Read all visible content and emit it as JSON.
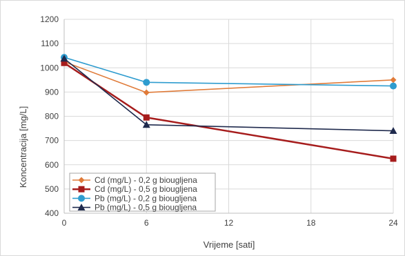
{
  "chart_data": {
    "type": "line",
    "title": "",
    "xlabel": "Vrijeme [sati]",
    "ylabel": "Koncentracija [mg/L]",
    "xlim": [
      0,
      24
    ],
    "ylim": [
      400,
      1200
    ],
    "x_ticks": [
      "0",
      "6",
      "12",
      "18",
      "24"
    ],
    "y_ticks": [
      "400",
      "500",
      "600",
      "700",
      "800",
      "900",
      "1000",
      "1100",
      "1200"
    ],
    "grid": "both",
    "legend_position": "bottom-left",
    "x": [
      0,
      6,
      24
    ],
    "series": [
      {
        "name": "Cd (mg/L) - 0,2 g biougljena",
        "color": "#e07b39",
        "marker": "diamond",
        "values": [
          1025,
          898,
          950
        ]
      },
      {
        "name": "Cd (mg/L) - 0,5 g biougljena",
        "color": "#a61c1c",
        "marker": "square",
        "values": [
          1020,
          795,
          625
        ]
      },
      {
        "name": "Pb (mg/L) - 0,2 g biougljena",
        "color": "#2e9ccf",
        "marker": "circle",
        "values": [
          1043,
          940,
          925
        ]
      },
      {
        "name": "Pb (mg/L) - 0,5 g biougljena",
        "color": "#1f2a4d",
        "marker": "triangle",
        "values": [
          1038,
          765,
          740
        ]
      }
    ]
  }
}
